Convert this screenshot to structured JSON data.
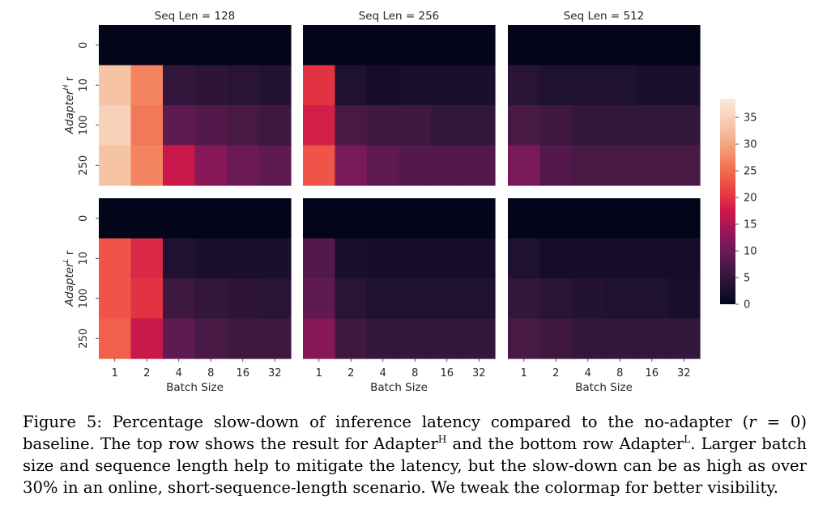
{
  "chart_data": {
    "type": "heatmap",
    "x_categories": [
      "1",
      "2",
      "4",
      "8",
      "16",
      "32"
    ],
    "y_categories": [
      "0",
      "10",
      "100",
      "250"
    ],
    "xlabel": "Batch Size",
    "row_labels": [
      {
        "name": "Adapter",
        "sup": "H",
        "suffix": " r"
      },
      {
        "name": "Adapter",
        "sup": "L",
        "suffix": " r"
      }
    ],
    "col_titles": [
      "Seq Len = 128",
      "Seq Len = 256",
      "Seq Len = 512"
    ],
    "colorbar": {
      "min": 0,
      "max": 38.5,
      "ticks": [
        "0",
        "5",
        "10",
        "15",
        "20",
        "25",
        "30",
        "35"
      ]
    },
    "panels": [
      {
        "row": 0,
        "col": 0,
        "values": [
          [
            0,
            0,
            0,
            0,
            0,
            0
          ],
          [
            33,
            27,
            5,
            4.5,
            4,
            3.5
          ],
          [
            35,
            26,
            9,
            8,
            7,
            6
          ],
          [
            33,
            27,
            17,
            12,
            10,
            9
          ]
        ]
      },
      {
        "row": 0,
        "col": 1,
        "values": [
          [
            0,
            0,
            0,
            0,
            0,
            0
          ],
          [
            20,
            3,
            2,
            2.5,
            2.5,
            2.5
          ],
          [
            18,
            7,
            6,
            6,
            5,
            5
          ],
          [
            23,
            11,
            9,
            8,
            8,
            8
          ]
        ]
      },
      {
        "row": 0,
        "col": 2,
        "values": [
          [
            0,
            0,
            0,
            0,
            0,
            0
          ],
          [
            4,
            3,
            3,
            3,
            2.5,
            2.5
          ],
          [
            7,
            6,
            5,
            5,
            5,
            5
          ],
          [
            11,
            8,
            7,
            7,
            7,
            7
          ]
        ]
      },
      {
        "row": 1,
        "col": 0,
        "values": [
          [
            0,
            0,
            0,
            0,
            0,
            0
          ],
          [
            23,
            19,
            3,
            2.5,
            2.5,
            2.5
          ],
          [
            23,
            20,
            6,
            5,
            4.5,
            4
          ],
          [
            24,
            17,
            9,
            7,
            6,
            6
          ]
        ]
      },
      {
        "row": 1,
        "col": 1,
        "values": [
          [
            0,
            0,
            0,
            0,
            0,
            0
          ],
          [
            8,
            2.5,
            2,
            2,
            2,
            2
          ],
          [
            9,
            4,
            3,
            3,
            3,
            3
          ],
          [
            12,
            6,
            5,
            5,
            5,
            5
          ]
        ]
      },
      {
        "row": 1,
        "col": 2,
        "values": [
          [
            0,
            0,
            0,
            0,
            0,
            0
          ],
          [
            3,
            2,
            2,
            2,
            2,
            2
          ],
          [
            5,
            4,
            3.5,
            3,
            3,
            2.5
          ],
          [
            7,
            6,
            5,
            5,
            5,
            5
          ]
        ]
      }
    ]
  },
  "caption": {
    "lead": "Figure 5: Percentage slow-down of inference latency compared to the no-adapter (",
    "expr_var": "r",
    "expr_rest": " = 0) baseline. The top row shows the result for Adapter",
    "sup1": "H",
    "mid": " and the bottom row Adapter",
    "sup2": "L",
    "tail": ". Larger batch size and sequence length help to mitigate the latency, but the slow-down can be as high as over 30% in an online, short-sequence-length scenario. We tweak the colormap for better visibility."
  }
}
